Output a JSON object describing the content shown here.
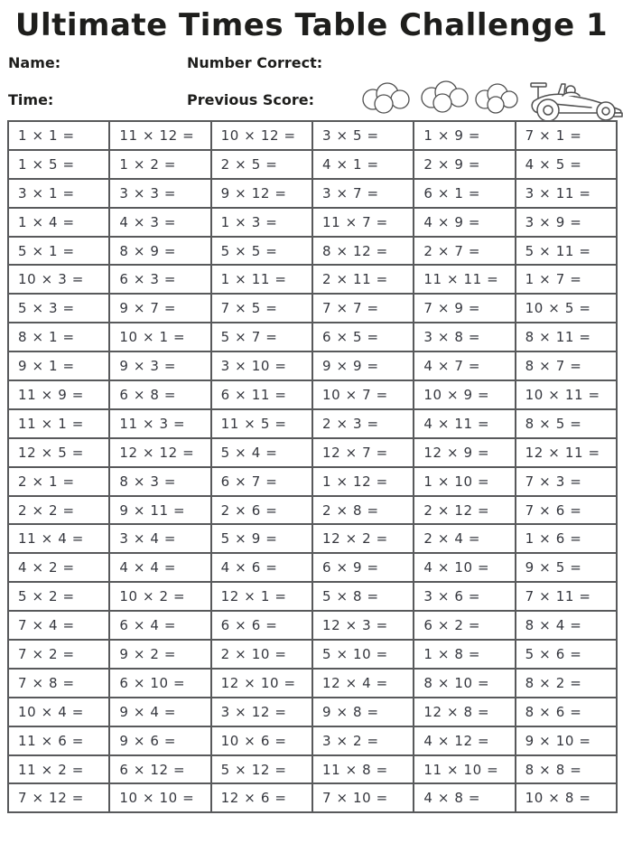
{
  "title": "Ultimate Times Table Challenge 1",
  "fields": {
    "name_label": "Name:",
    "number_correct_label": "Number Correct:",
    "time_label": "Time:",
    "previous_score_label": "Previous Score:"
  },
  "colors": {
    "title": "#1e1e1c",
    "ink": "#35373e",
    "border": "#58595b",
    "paper": "#ffffff",
    "line_art": "#4f4f4f"
  },
  "problems": {
    "columns": 6,
    "rows": [
      [
        "1 × 1 =",
        "11 × 12 =",
        "10 × 12 =",
        "3 × 5 =",
        "1 × 9 =",
        "7 × 1 ="
      ],
      [
        "1 × 5 =",
        "1 × 2 =",
        "2 × 5 =",
        "4 × 1 =",
        "2 × 9 =",
        "4 × 5 ="
      ],
      [
        "3 × 1 =",
        "3 × 3 =",
        "9 × 12 =",
        "3 × 7 =",
        "6 × 1 =",
        "3 × 11 ="
      ],
      [
        "1 × 4 =",
        "4 × 3 =",
        "1 × 3 =",
        "11 × 7 =",
        "4 × 9 =",
        "3 × 9 ="
      ],
      [
        "5 × 1 =",
        "8 × 9 =",
        "5 × 5 =",
        "8 × 12 =",
        "2 × 7 =",
        "5 × 11 ="
      ],
      [
        "10 × 3 =",
        "6 × 3 =",
        "1 × 11 =",
        "2 × 11 =",
        "11 × 11 =",
        "1 × 7 ="
      ],
      [
        "5 × 3 =",
        "9 × 7 =",
        "7 × 5 =",
        "7 × 7 =",
        "7 × 9 =",
        "10 × 5 ="
      ],
      [
        "8 × 1 =",
        "10 × 1 =",
        "5 × 7 =",
        "6 × 5 =",
        "3 × 8 =",
        "8 × 11 ="
      ],
      [
        "9 × 1 =",
        "9 × 3 =",
        "3 × 10 =",
        "9 × 9 =",
        "4 × 7 =",
        "8 × 7 ="
      ],
      [
        "11 × 9 =",
        "6 × 8 =",
        "6 × 11 =",
        "10 × 7 =",
        "10 × 9 =",
        "10 × 11 ="
      ],
      [
        "11 × 1 =",
        "11 × 3 =",
        "11 × 5 =",
        "2 × 3 =",
        "4 × 11 =",
        "8 × 5 ="
      ],
      [
        "12 × 5 =",
        "12 × 12 =",
        "5 × 4 =",
        "12 × 7 =",
        "12 × 9 =",
        "12 × 11 ="
      ],
      [
        "2 × 1 =",
        "8 × 3 =",
        "6 × 7 =",
        "1 × 12 =",
        "1 × 10 =",
        "7 × 3 ="
      ],
      [
        "2 × 2 =",
        "9 × 11 =",
        "2 × 6 =",
        "2 × 8 =",
        "2 × 12 =",
        "7 × 6 ="
      ],
      [
        "11 × 4 =",
        "3 × 4 =",
        "5 × 9 =",
        "12 × 2 =",
        "2 × 4 =",
        "1 × 6 ="
      ],
      [
        "4 × 2 =",
        "4 × 4 =",
        "4 × 6 =",
        "6 × 9 =",
        "4 × 10 =",
        "9 × 5 ="
      ],
      [
        "5 × 2 =",
        "10 × 2 =",
        "12 × 1 =",
        "5 × 8 =",
        "3 × 6 =",
        "7 × 11 ="
      ],
      [
        "7 × 4 =",
        "6 × 4 =",
        "6 × 6 =",
        "12 × 3 =",
        "6 × 2 =",
        "8 × 4 ="
      ],
      [
        "7 × 2 =",
        "9 × 2 =",
        "2 × 10 =",
        "5 × 10 =",
        "1 × 8 =",
        "5 × 6 ="
      ],
      [
        "7 × 8 =",
        "6 × 10 =",
        "12 × 10 =",
        "12 × 4 =",
        "8 × 10 =",
        "8 × 2 ="
      ],
      [
        "10 × 4 =",
        "9 × 4 =",
        "3 × 12 =",
        "9 × 8 =",
        "12 × 8 =",
        "8 × 6 ="
      ],
      [
        "11 × 6 =",
        "9 × 6 =",
        "10 × 6 =",
        "3 × 2 =",
        "4 × 12 =",
        "9 × 10 ="
      ],
      [
        "11 × 2 =",
        "6 × 12 =",
        "5 × 12 =",
        "11 × 8 =",
        "11 × 10 =",
        "8 × 8 ="
      ],
      [
        "7 × 12 =",
        "10 × 10 =",
        "12 × 6 =",
        "7 × 10 =",
        "4 × 8 =",
        "10 × 8 ="
      ]
    ]
  }
}
